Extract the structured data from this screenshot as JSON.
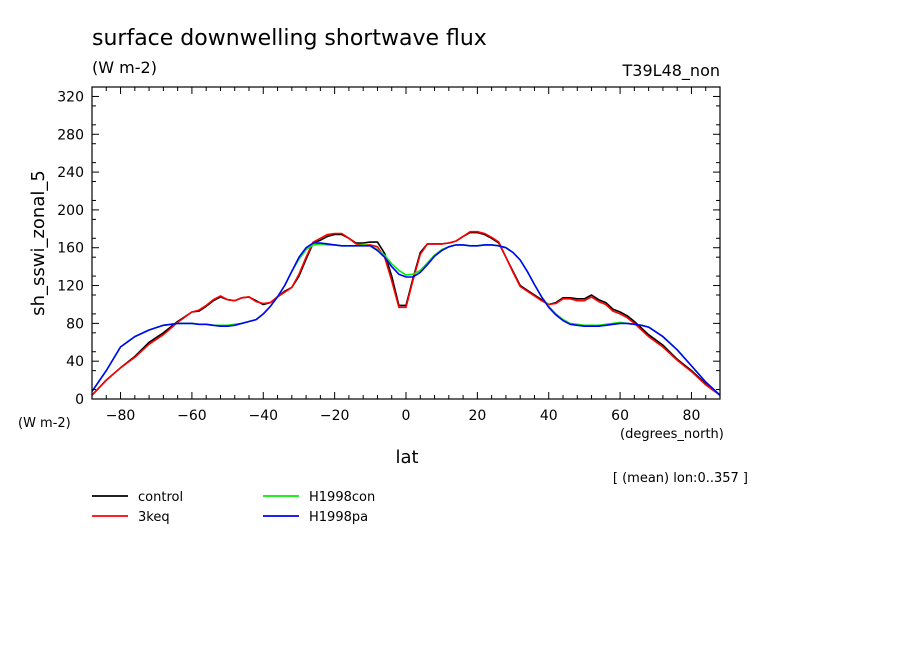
{
  "chart_data": {
    "type": "line",
    "title": "surface downwelling shortwave flux",
    "units": "(W m-2)",
    "run_label": "T39L48_non",
    "ylabel": "sh_sswi_zonal_5",
    "y_units": "(W m-2)",
    "xlabel": "lat",
    "x_units": "(degrees_north)",
    "averaging_note": "[ (mean) lon:0..357 ]",
    "xlim": [
      -88,
      88
    ],
    "ylim": [
      0,
      330
    ],
    "x_ticks": [
      -80,
      -60,
      -40,
      -20,
      0,
      20,
      40,
      60,
      80
    ],
    "y_ticks": [
      0,
      40,
      80,
      120,
      160,
      200,
      240,
      280,
      320
    ],
    "grid": false,
    "legend_position": "bottom-left",
    "x": [
      -88,
      -84,
      -80,
      -76,
      -72,
      -68,
      -64,
      -60,
      -58,
      -56,
      -54,
      -52,
      -50,
      -48,
      -46,
      -44,
      -42,
      -40,
      -38,
      -36,
      -34,
      -32,
      -30,
      -28,
      -26,
      -24,
      -22,
      -20,
      -18,
      -16,
      -14,
      -12,
      -10,
      -8,
      -6,
      -4,
      -2,
      0,
      2,
      4,
      6,
      8,
      10,
      12,
      14,
      16,
      18,
      20,
      22,
      24,
      26,
      28,
      30,
      32,
      34,
      36,
      38,
      40,
      42,
      44,
      46,
      48,
      50,
      52,
      54,
      56,
      58,
      60,
      62,
      64,
      66,
      68,
      72,
      76,
      80,
      84,
      88
    ],
    "series": [
      {
        "name": "control",
        "color": "#000000",
        "values": [
          4,
          20,
          33,
          45,
          60,
          70,
          82,
          92,
          93,
          98,
          104,
          108,
          105,
          104,
          107,
          108,
          104,
          100,
          102,
          108,
          114,
          118,
          130,
          148,
          165,
          168,
          172,
          174,
          174,
          170,
          165,
          165,
          166,
          166,
          154,
          130,
          99,
          99,
          128,
          155,
          164,
          164,
          164,
          165,
          167,
          172,
          176,
          176,
          174,
          170,
          165,
          150,
          135,
          120,
          115,
          110,
          105,
          100,
          102,
          107,
          107,
          106,
          106,
          110,
          105,
          102,
          95,
          92,
          88,
          82,
          75,
          68,
          57,
          42,
          30,
          16,
          4
        ]
      },
      {
        "name": "3keq",
        "color": "#ff0000",
        "values": [
          4,
          20,
          33,
          44,
          58,
          68,
          81,
          92,
          94,
          99,
          105,
          109,
          105,
          104,
          107,
          108,
          103,
          101,
          102,
          108,
          113,
          118,
          132,
          150,
          166,
          170,
          174,
          175,
          175,
          170,
          164,
          163,
          163,
          161,
          150,
          125,
          97,
          97,
          126,
          153,
          164,
          164,
          164,
          165,
          167,
          172,
          177,
          177,
          175,
          171,
          166,
          150,
          134,
          119,
          114,
          109,
          104,
          100,
          101,
          106,
          106,
          104,
          104,
          108,
          103,
          100,
          93,
          90,
          86,
          80,
          73,
          66,
          55,
          41,
          29,
          15,
          4
        ]
      },
      {
        "name": "H1998con",
        "color": "#00ee00",
        "values": [
          8,
          30,
          55,
          66,
          73,
          78,
          80,
          80,
          79,
          79,
          78,
          78,
          78,
          79,
          80,
          82,
          84,
          90,
          98,
          108,
          120,
          135,
          148,
          158,
          163,
          164,
          163,
          163,
          162,
          162,
          162,
          163,
          162,
          158,
          152,
          143,
          136,
          131,
          132,
          136,
          144,
          152,
          158,
          161,
          163,
          163,
          162,
          162,
          163,
          163,
          162,
          160,
          155,
          147,
          135,
          121,
          108,
          98,
          90,
          84,
          80,
          79,
          78,
          78,
          78,
          79,
          80,
          81,
          80,
          79,
          78,
          76,
          66,
          52,
          35,
          18,
          4
        ]
      },
      {
        "name": "H1998pa",
        "color": "#0000ff",
        "values": [
          8,
          30,
          55,
          66,
          73,
          78,
          80,
          80,
          79,
          79,
          78,
          77,
          77,
          78,
          80,
          82,
          84,
          90,
          98,
          108,
          120,
          135,
          150,
          160,
          165,
          165,
          164,
          163,
          162,
          162,
          162,
          162,
          162,
          157,
          150,
          140,
          132,
          129,
          129,
          134,
          142,
          151,
          157,
          161,
          163,
          163,
          162,
          162,
          163,
          163,
          162,
          160,
          155,
          147,
          135,
          121,
          108,
          97,
          89,
          83,
          79,
          78,
          77,
          77,
          77,
          78,
          79,
          80,
          80,
          79,
          78,
          76,
          66,
          52,
          35,
          18,
          4
        ]
      }
    ]
  }
}
